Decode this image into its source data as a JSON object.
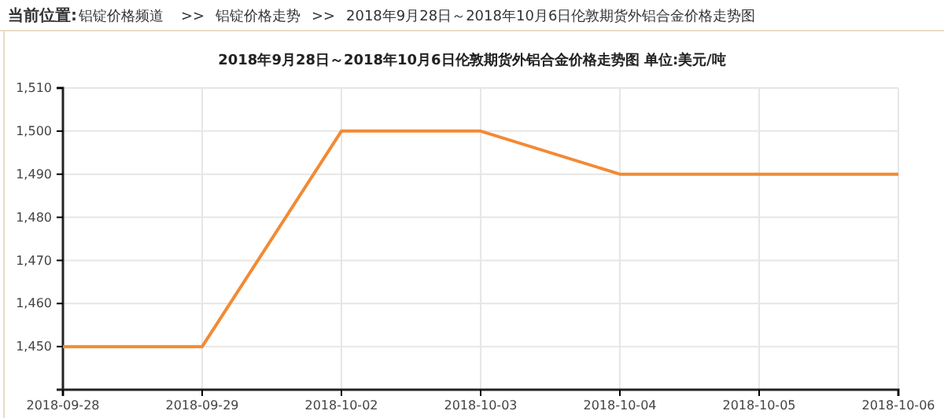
{
  "chart_data": {
    "type": "line",
    "title": "2018年9月28日～2018年10月6日伦敦期货外铝合金价格走势图 单位:美元/吨",
    "annotations": [
      "当前位置:",
      "铝锭价格频道",
      ">>",
      "铝锭价格走势",
      ">>",
      "2018年9月28日～2018年10月6日伦敦期货外铝合金价格走势图"
    ],
    "categories": [
      "2018-09-28",
      "2018-09-29",
      "2018-10-02",
      "2018-10-03",
      "2018-10-04",
      "2018-10-05",
      "2018-10-06"
    ],
    "series": [
      {
        "color": "#f28a35",
        "values": [
          1450,
          1450,
          1500,
          1500,
          1490,
          1490,
          1490
        ]
      }
    ],
    "ylim": [
      1440,
      1510
    ],
    "yticks": [
      {
        "value": 1450,
        "label": "1,450"
      },
      {
        "value": 1460,
        "label": "1,460"
      },
      {
        "value": 1470,
        "label": "1,470"
      },
      {
        "value": 1480,
        "label": "1,480"
      },
      {
        "value": 1490,
        "label": "1,490"
      },
      {
        "value": 1500,
        "label": "1,500"
      },
      {
        "value": 1510,
        "label": "1,510"
      }
    ],
    "grid": true,
    "marker": "none",
    "line_style": "solid"
  }
}
